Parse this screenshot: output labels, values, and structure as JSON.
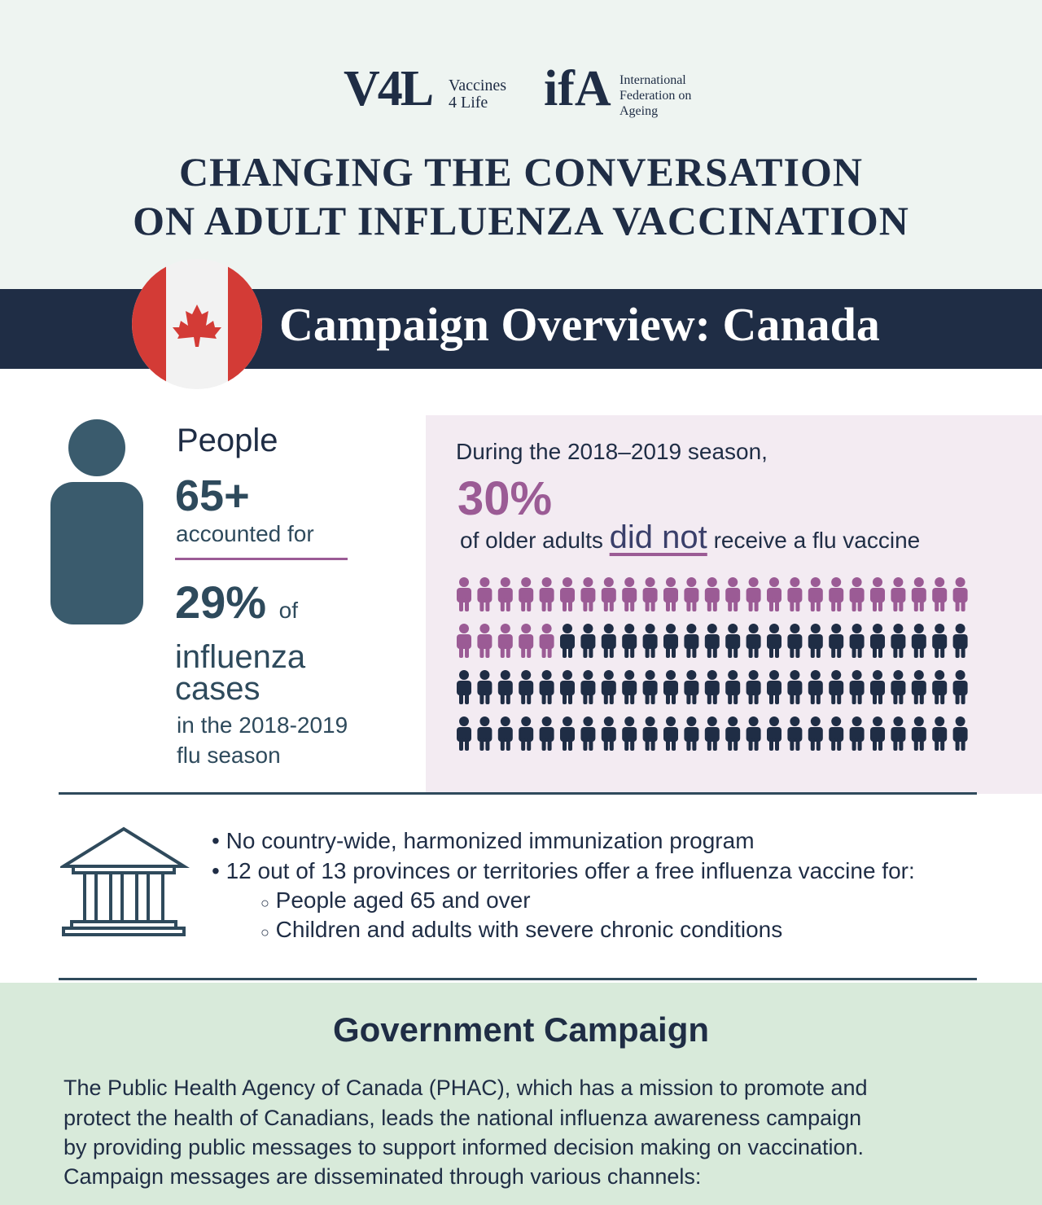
{
  "logos": {
    "v4l_mark": "V4L",
    "v4l_name": [
      "Vaccines",
      "4 Life"
    ],
    "ifa_mark": "ifA",
    "ifa_name": [
      "International",
      "Federation on",
      "Ageing"
    ]
  },
  "header": {
    "title_lines": [
      "CHANGING THE CONVERSATION",
      "ON ADULT INFLUENZA VACCINATION"
    ],
    "banner": "Campaign Overview: Canada"
  },
  "stat": {
    "people": "People",
    "age": "65+",
    "accounted": "accounted for",
    "share": "29%",
    "of": "of",
    "influenza": "influenza",
    "cases": "cases",
    "season_lines": [
      "in the 2018-2019",
      "flu season"
    ]
  },
  "survey": {
    "intro": "During the 2018–2019 season,",
    "share": "30%",
    "pre": "of older adults",
    "emph": "did not",
    "post": "receive a flu vaccine",
    "icon_array": {
      "highlighted": 30,
      "total": 100,
      "highlight_color": "#9b5b95",
      "base_color": "#1f2d45"
    }
  },
  "policy": {
    "bullets": [
      "No country-wide, harmonized immunization program",
      "12 out of 13 provinces or territories offer a free influenza vaccine for:"
    ],
    "sub_bullets": [
      "People aged 65 and over",
      "Children and adults with severe chronic conditions"
    ]
  },
  "campaign": {
    "heading": "Government Campaign",
    "lines": [
      "The Public Health Agency of Canada (PHAC), which has a mission to promote and",
      "protect the health of Canadians, leads the national influenza awareness campaign",
      "by providing public messages to support informed decision making on vaccination.",
      "Campaign messages are disseminated through various channels:"
    ]
  }
}
